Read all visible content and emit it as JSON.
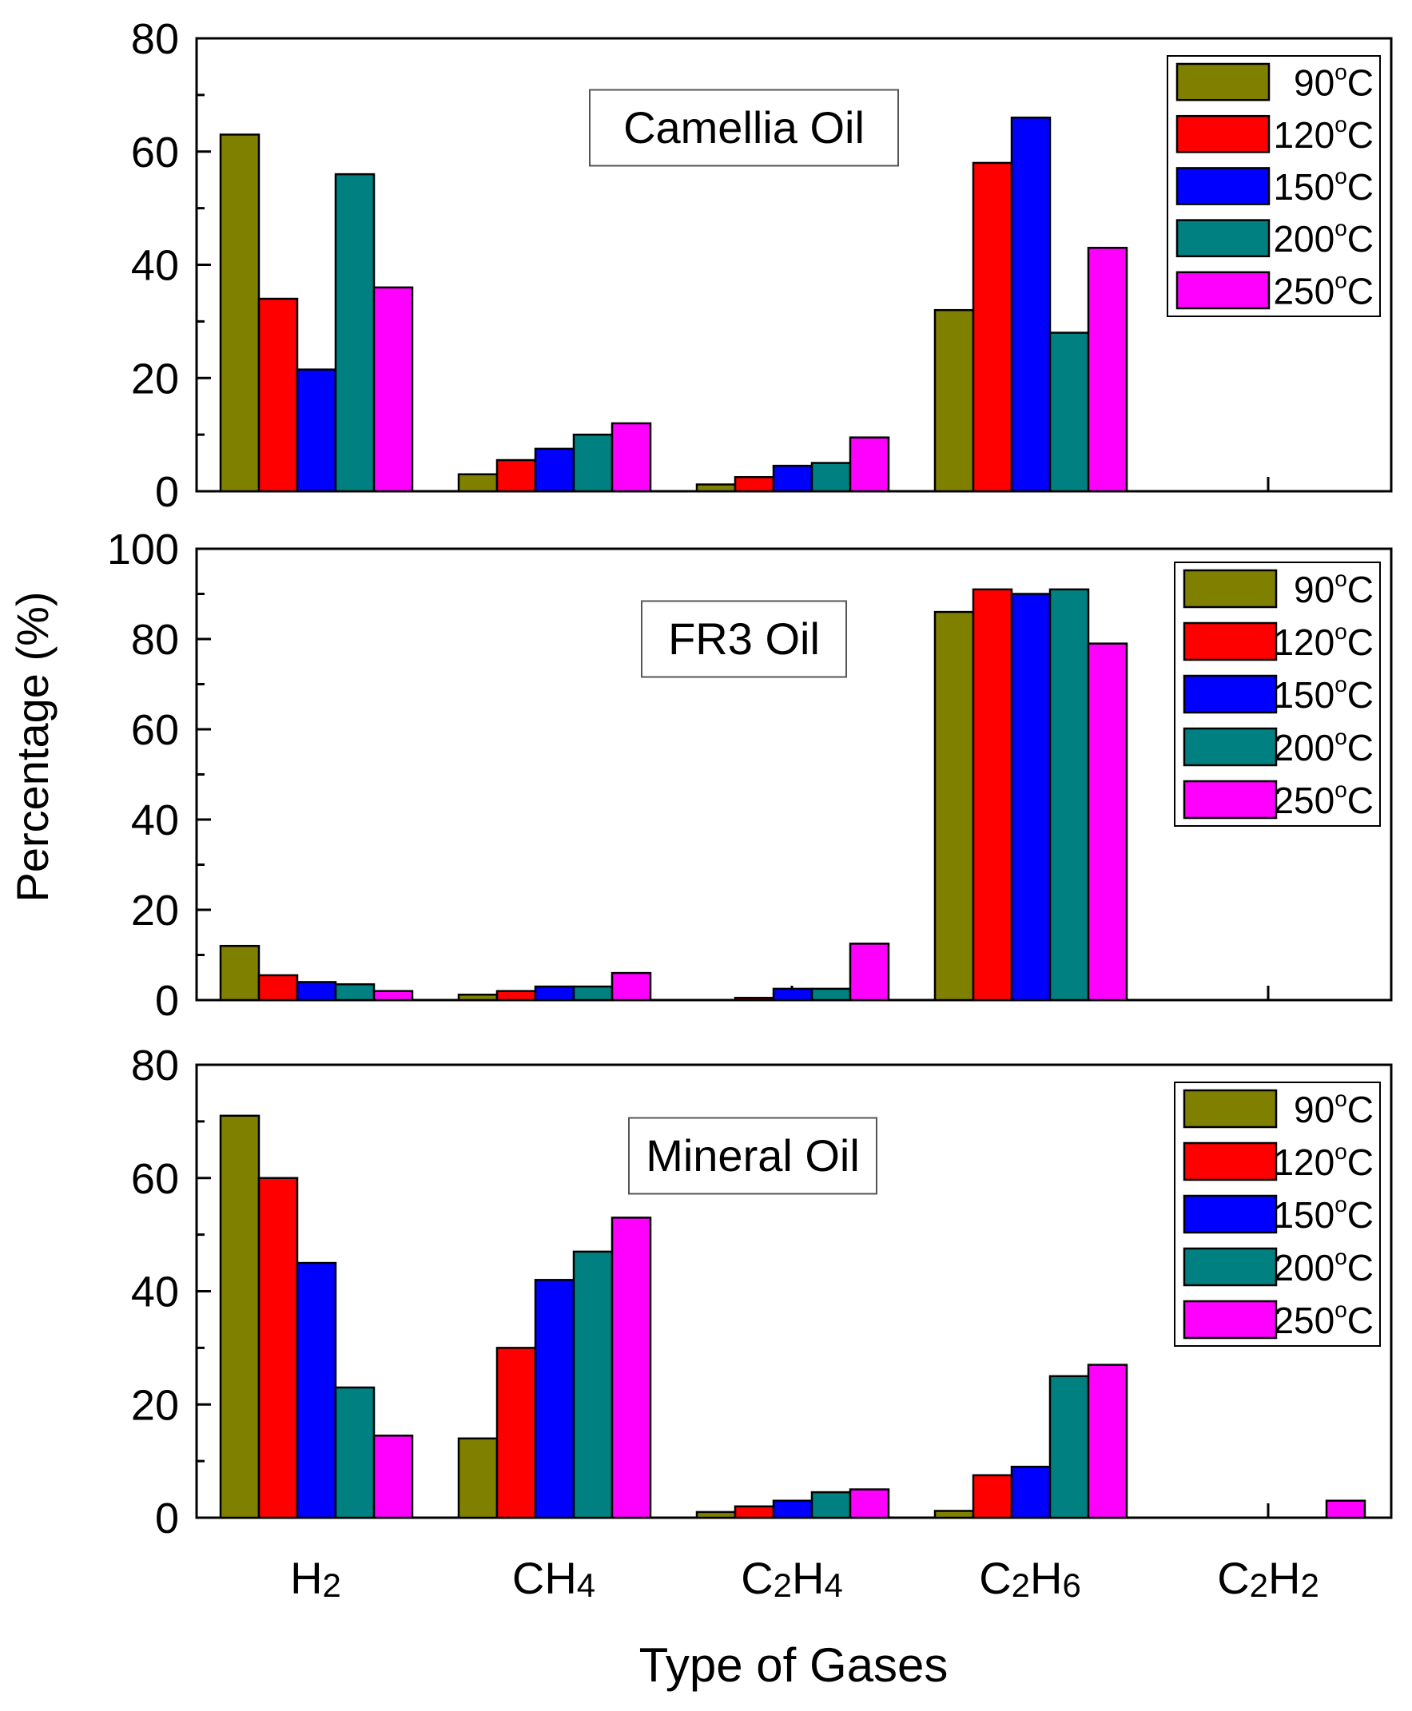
{
  "figure": {
    "ylabel": "Percentage  (%)",
    "xlabel": "Type of Gases"
  },
  "chart_data": {
    "type": "bar",
    "categories": [
      "H2",
      "CH4",
      "C2H4",
      "C2H6",
      "C2H2"
    ],
    "category_labels": [
      {
        "main": [
          "H",
          "2"
        ]
      },
      {
        "main": [
          "CH",
          "4"
        ]
      },
      {
        "main": [
          "C",
          "2",
          "H",
          "4"
        ]
      },
      {
        "main": [
          "C",
          "2",
          "H",
          "6"
        ]
      },
      {
        "main": [
          "C",
          "2",
          "H",
          "2"
        ]
      }
    ],
    "legend": [
      "90°C",
      "120°C",
      "150°C",
      "200°C",
      "250°C"
    ],
    "legend_parts": [
      {
        "num": "90",
        "deg": "o",
        "unit": "C"
      },
      {
        "num": "120",
        "deg": "o",
        "unit": "C"
      },
      {
        "num": "150",
        "deg": "o",
        "unit": "C"
      },
      {
        "num": "200",
        "deg": "o",
        "unit": "C"
      },
      {
        "num": "250",
        "deg": "o",
        "unit": "C"
      }
    ],
    "colors": [
      "#808000",
      "#ff0000",
      "#0000ff",
      "#008080",
      "#ff00ff"
    ],
    "legend_position": "top-right",
    "panels": [
      {
        "title": "Camellia Oil",
        "ylim": [
          0,
          80
        ],
        "yticks": [
          0,
          20,
          40,
          60,
          80
        ],
        "series": [
          {
            "name": "90°C",
            "values": [
              63,
              3,
              1.2,
              32,
              0
            ]
          },
          {
            "name": "120°C",
            "values": [
              34,
              5.5,
              2.5,
              58,
              0
            ]
          },
          {
            "name": "150°C",
            "values": [
              21.5,
              7.5,
              4.5,
              66,
              0
            ]
          },
          {
            "name": "200°C",
            "values": [
              56,
              10,
              5,
              28,
              0
            ]
          },
          {
            "name": "250°C",
            "values": [
              36,
              12,
              9.5,
              43,
              0
            ]
          }
        ]
      },
      {
        "title": "FR3 Oil",
        "ylim": [
          0,
          100
        ],
        "yticks": [
          0,
          20,
          40,
          60,
          80,
          100
        ],
        "series": [
          {
            "name": "90°C",
            "values": [
              12,
              1.2,
              0,
              86,
              0
            ]
          },
          {
            "name": "120°C",
            "values": [
              5.5,
              2,
              0.5,
              91,
              0
            ]
          },
          {
            "name": "150°C",
            "values": [
              4,
              3,
              2.5,
              90,
              0
            ]
          },
          {
            "name": "200°C",
            "values": [
              3.5,
              3,
              2.5,
              91,
              0
            ]
          },
          {
            "name": "250°C",
            "values": [
              2,
              6,
              12.5,
              79,
              0
            ]
          }
        ]
      },
      {
        "title": "Mineral Oil",
        "ylim": [
          0,
          80
        ],
        "yticks": [
          0,
          20,
          40,
          60,
          80
        ],
        "series": [
          {
            "name": "90°C",
            "values": [
              71,
              14,
              1,
              1.2,
              0
            ]
          },
          {
            "name": "120°C",
            "values": [
              60,
              30,
              2,
              7.5,
              0
            ]
          },
          {
            "name": "150°C",
            "values": [
              45,
              42,
              3,
              9,
              0
            ]
          },
          {
            "name": "200°C",
            "values": [
              23,
              47,
              4.5,
              25,
              0
            ]
          },
          {
            "name": "250°C",
            "values": [
              14.5,
              53,
              5,
              27,
              3
            ]
          }
        ]
      }
    ]
  }
}
